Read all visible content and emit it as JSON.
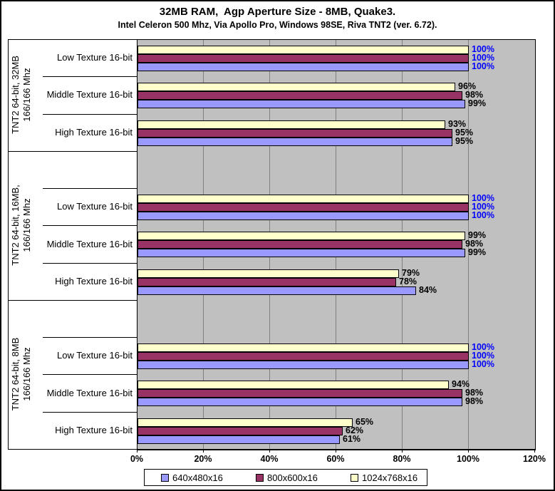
{
  "chart_data": {
    "type": "bar",
    "orientation": "horizontal",
    "title": "32MB RAM,  Agp Aperture Size - 8MB, Quake3.",
    "subtitle": "Intel Celeron 500 Mhz, Via Apollo Pro, Windows 98SE, Riva TNT2 (ver. 6.72).",
    "unit": "%",
    "xlim": [
      0,
      120
    ],
    "x_ticks": [
      "0%",
      "20%",
      "40%",
      "60%",
      "80%",
      "100%",
      "120%"
    ],
    "grid": true,
    "legend_position": "bottom",
    "colors": {
      "plot_bg": "#C0C0C0",
      "gridline": "#808080",
      "bar_border": "#000000",
      "value_label": "#000000",
      "value_label_100": "#0000FF",
      "text": "#000000",
      "background": "#FFFFFF"
    },
    "series": [
      {
        "name": "640x480x16",
        "color": "#9999FF"
      },
      {
        "name": "800x600x16",
        "color": "#993366"
      },
      {
        "name": "1024x768x16",
        "color": "#FFFFCC"
      }
    ],
    "groups": [
      {
        "label_lines": [
          "TNT2 64-bit, 32MB",
          "166/166 Mhz"
        ],
        "rows": [
          {
            "category": "Low Texture 16-bit",
            "values": {
              "640x480x16": 100,
              "800x600x16": 100,
              "1024x768x16": 100
            }
          },
          {
            "category": "Middle Texture 16-bit",
            "values": {
              "640x480x16": 99,
              "800x600x16": 98,
              "1024x768x16": 96
            }
          },
          {
            "category": "High Texture 16-bit",
            "values": {
              "640x480x16": 95,
              "800x600x16": 95,
              "1024x768x16": 93
            }
          }
        ]
      },
      {
        "label_lines": [
          "TNT2 64-bit, 16MB,",
          "166/166 Mhz"
        ],
        "rows": [
          {
            "category": "Low Texture 16-bit",
            "values": {
              "640x480x16": 100,
              "800x600x16": 100,
              "1024x768x16": 100
            }
          },
          {
            "category": "Middle Texture 16-bit",
            "values": {
              "640x480x16": 99,
              "800x600x16": 98,
              "1024x768x16": 99
            }
          },
          {
            "category": "High Texture 16-bit",
            "values": {
              "640x480x16": 84,
              "800x600x16": 78,
              "1024x768x16": 79
            }
          }
        ]
      },
      {
        "label_lines": [
          "TNT2 64-bit, 8MB",
          "166/166 Mhz"
        ],
        "rows": [
          {
            "category": "Low Texture 16-bit",
            "values": {
              "640x480x16": 100,
              "800x600x16": 100,
              "1024x768x16": 100
            }
          },
          {
            "category": "Middle Texture 16-bit",
            "values": {
              "640x480x16": 98,
              "800x600x16": 98,
              "1024x768x16": 94
            }
          },
          {
            "category": "High Texture 16-bit",
            "values": {
              "640x480x16": 61,
              "800x600x16": 62,
              "1024x768x16": 65
            }
          }
        ]
      }
    ]
  }
}
